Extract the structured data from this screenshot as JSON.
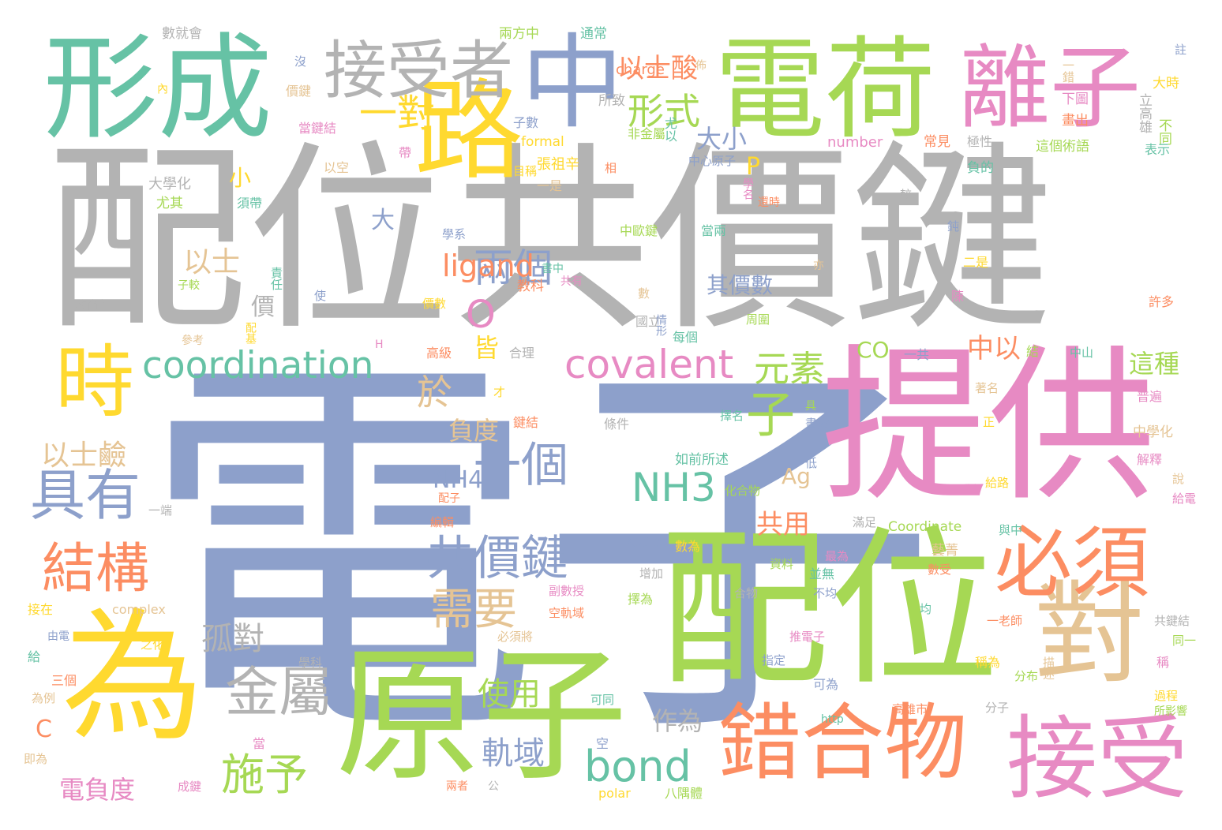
{
  "palette": {
    "gray": "#b3b3b3",
    "blue": "#8da0cb",
    "pink": "#e78ac3",
    "green": "#a6d854",
    "yellow": "#ffd92f",
    "orange": "#fc8d62",
    "teal": "#66c2a5",
    "tan": "#e5c494"
  },
  "words": [
    {
      "text": "配位共價鍵",
      "color": "gray",
      "weight": 1.0
    },
    {
      "text": "電子",
      "color": "blue",
      "weight": 0.96
    },
    {
      "text": "提供",
      "color": "pink",
      "weight": 0.62
    },
    {
      "text": "配位",
      "color": "green",
      "weight": 0.55
    },
    {
      "text": "原子",
      "color": "green",
      "weight": 0.52
    },
    {
      "text": "為",
      "color": "yellow",
      "weight": 0.5
    },
    {
      "text": "電荷",
      "color": "green",
      "weight": 0.38
    },
    {
      "text": "形成",
      "color": "teal",
      "weight": 0.38
    },
    {
      "text": "中",
      "color": "blue",
      "weight": 0.35
    },
    {
      "text": "路",
      "color": "yellow",
      "weight": 0.34
    },
    {
      "text": "離子",
      "color": "pink",
      "weight": 0.32
    },
    {
      "text": "錯合物",
      "color": "orange",
      "weight": 0.3
    },
    {
      "text": "接受",
      "color": "pink",
      "weight": 0.3
    },
    {
      "text": "對",
      "color": "tan",
      "weight": 0.3
    },
    {
      "text": "必須",
      "color": "orange",
      "weight": 0.28
    },
    {
      "text": "時",
      "color": "yellow",
      "weight": 0.28
    },
    {
      "text": "接受者",
      "color": "gray",
      "weight": 0.2
    },
    {
      "text": "covalent",
      "color": "pink",
      "weight": 0.14
    },
    {
      "text": "coordination",
      "color": "teal",
      "weight": 0.14
    },
    {
      "text": "bond",
      "color": "teal",
      "weight": 0.15
    },
    {
      "text": "NH3",
      "color": "teal",
      "weight": 0.13
    },
    {
      "text": "具有",
      "color": "blue",
      "weight": 0.2
    },
    {
      "text": "結構",
      "color": "orange",
      "weight": 0.19
    },
    {
      "text": "金屬",
      "color": "gray",
      "weight": 0.19
    },
    {
      "text": "一個",
      "color": "blue",
      "weight": 0.17
    },
    {
      "text": "子",
      "color": "green",
      "weight": 0.17
    },
    {
      "text": "共價鍵",
      "color": "blue",
      "weight": 0.17
    },
    {
      "text": "需要",
      "color": "tan",
      "weight": 0.15
    },
    {
      "text": "施予",
      "color": "green",
      "weight": 0.15
    },
    {
      "text": "兩個",
      "color": "blue",
      "weight": 0.15
    },
    {
      "text": "一對",
      "color": "yellow",
      "weight": 0.13
    },
    {
      "text": "形式",
      "color": "green",
      "weight": 0.13
    },
    {
      "text": "元素",
      "color": "green",
      "weight": 0.12
    },
    {
      "text": "O",
      "color": "pink",
      "weight": 0.12
    },
    {
      "text": "於",
      "color": "tan",
      "weight": 0.12
    },
    {
      "text": "孤對",
      "color": "gray",
      "weight": 0.11
    },
    {
      "text": "軌域",
      "color": "blue",
      "weight": 0.11
    },
    {
      "text": "使用",
      "color": "green",
      "weight": 0.11
    },
    {
      "text": "以士",
      "color": "tan",
      "weight": 0.1
    },
    {
      "text": "以士酸",
      "color": "orange",
      "weight": 0.1
    },
    {
      "text": "以士鹼",
      "color": "tan",
      "weight": 0.1
    },
    {
      "text": "ligand",
      "color": "orange",
      "weight": 0.1
    },
    {
      "text": "中以",
      "color": "orange",
      "weight": 0.1
    },
    {
      "text": "這種",
      "color": "green",
      "weight": 0.09
    },
    {
      "text": "大小",
      "color": "blue",
      "weight": 0.09
    },
    {
      "text": "負度",
      "color": "tan",
      "weight": 0.09
    },
    {
      "text": "皆",
      "color": "yellow",
      "weight": 0.09
    },
    {
      "text": "共用",
      "color": "orange",
      "weight": 0.09
    },
    {
      "text": "作為",
      "color": "gray",
      "weight": 0.09
    },
    {
      "text": "電負度",
      "color": "pink",
      "weight": 0.09
    },
    {
      "text": "其價數",
      "color": "blue",
      "weight": 0.08
    },
    {
      "text": "NH4",
      "color": "blue",
      "weight": 0.08
    },
    {
      "text": "Ag",
      "color": "tan",
      "weight": 0.08
    },
    {
      "text": "CO",
      "color": "green",
      "weight": 0.08
    },
    {
      "text": "大",
      "color": "blue",
      "weight": 0.08
    },
    {
      "text": "價",
      "color": "gray",
      "weight": 0.08
    },
    {
      "text": "C",
      "color": "orange",
      "weight": 0.08
    },
    {
      "text": "P",
      "color": "yellow",
      "weight": 0.07
    },
    {
      "text": "小",
      "color": "yellow",
      "weight": 0.07
    }
  ],
  "small_words": [
    "數就會",
    "兩方中",
    "通常",
    "註",
    "大時",
    "一錯",
    "下圖",
    "畫出",
    "立高雄",
    "不同",
    "表示",
    "沒",
    "內",
    "價鍵",
    "當鍵結",
    "charge",
    "所致",
    "非金屬",
    "尤以",
    "子數",
    "formal",
    "佈",
    "number",
    "常見",
    "極性",
    "這個術語",
    "負的",
    "中心原子",
    "張祖辛",
    "以空",
    "帶",
    "相",
    "大學化",
    "尤其",
    "須帶",
    "學系",
    "目稱",
    "一是",
    "學名",
    "還時",
    "較",
    "中歐鍵",
    "當兩",
    "鈍",
    "二是",
    "亦",
    "共有",
    "教科",
    "教育部",
    "子較",
    "責任",
    "使",
    "價數",
    "數",
    "陳",
    "許多",
    "國立",
    "周圍",
    "每個",
    "情形",
    "配基",
    "參考",
    "H",
    "高級",
    "合理",
    "結",
    "中山",
    "一共",
    "才",
    "著名",
    "普遍",
    "鍵結",
    "條件",
    "具",
    "擇名",
    "畫成",
    "正",
    "中學化",
    "解釋",
    "配子",
    "一端",
    "化合物",
    "如前所述",
    "低",
    "給路",
    "說",
    "給電",
    "編輯",
    "滿足",
    "Coordinate",
    "與中",
    "POCl3",
    "數為",
    "藝菁",
    "最為",
    "數受",
    "增加",
    "資料",
    "並無",
    "不均",
    "接在",
    "complex",
    "副數授",
    "空軌域",
    "合物",
    "擇為",
    "均",
    "由電",
    "之化",
    "必須將",
    "推電子",
    "一老師",
    "共鍵結",
    "同一",
    "給",
    "指定",
    "稱為",
    "描述",
    "稱",
    "三個",
    "學科",
    "分布",
    "可同",
    "可為",
    "過程",
    "為例",
    "當",
    "高雄市",
    "分子",
    "所影響",
    "http",
    "空",
    "polar",
    "即為",
    "成鍵",
    "兩者",
    "公",
    "八隅體",
    "書中"
  ]
}
